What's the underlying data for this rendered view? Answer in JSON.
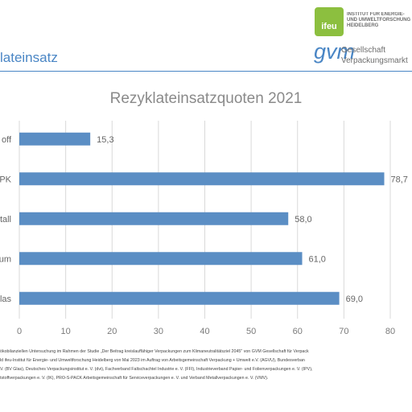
{
  "header": {
    "slide_title": "lateinsatz",
    "ifeu_logo_text": "ifeu",
    "ifeu_name_lines": [
      "INSTITUT FÜR ENERGIE-",
      "UND UMWELTFORSCHUNG",
      "HEIDELBERG"
    ],
    "gvm_logo_text": "gvm",
    "gvm_name_lines": [
      "Gesellschaft",
      "Verpackungsmarkt"
    ]
  },
  "footnote_lines": [
    "ökobilanziellen Untersuchung im Rahmen der Studie „Der Beitrag kreislauffähiger Verpackungen zum Klimaneutralitätsziel 2045\" von GVM Gesellschaft für Verpack",
    "ld ifeu-Institut für Energie- und Umweltforschung Heidelberg von Mai 2023 im Auftrag von Arbeitsgemeinschaft Verpackung + Umwelt e.V. (AGVU), Bundesverban",
    "V. (BV Glas), Deutsches Verpackungsinstitut e. V. (dvi), Fachverband Faltschachtel Industrie e. V. (FFI), Industrieverband Papier- und Folienverpackungen e. V. (IPV),",
    "tstoffverpackungen e. V. (IK), PRO-S-PACK Arbeitsgemeinschaft für Serviceverpackungen e. V. und Verband Metallverpackungen e. V. (VMV)."
  ],
  "chart_data": {
    "type": "bar",
    "orientation": "horizontal",
    "title": "Rezyklateinsatzquoten 2021",
    "categories": [
      "off",
      "PK",
      "tall",
      "um",
      "las"
    ],
    "values": [
      15.3,
      78.7,
      58.0,
      61.0,
      69.0
    ],
    "value_labels": [
      "15,3",
      "78,7",
      "58,0",
      "61,0",
      "69,0"
    ],
    "xlim": [
      0,
      80
    ],
    "xticks": [
      0,
      10,
      20,
      30,
      40,
      50,
      60,
      70,
      80
    ],
    "grid": true,
    "bar_color": "#5b8ec4",
    "grid_color": "#d9d9d9",
    "title_color": "#8a8a8a"
  }
}
